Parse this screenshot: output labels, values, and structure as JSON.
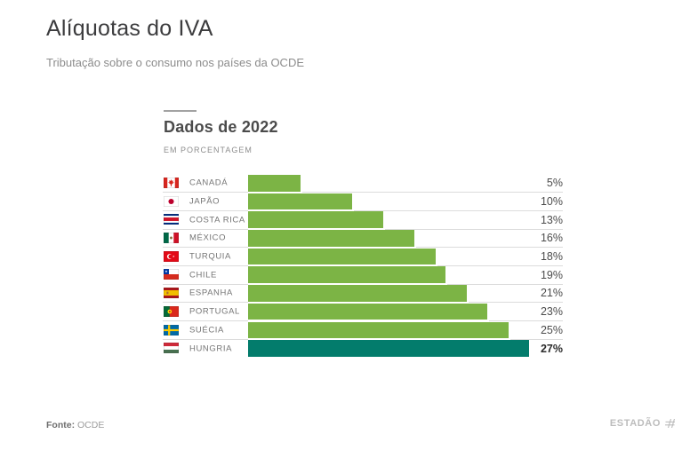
{
  "header": {
    "title": "Alíquotas do IVA",
    "subtitle": "Tributação sobre o consumo nos países da OCDE"
  },
  "chart_header": {
    "heading": "Dados de 2022",
    "unit_label": "EM PORCENTAGEM"
  },
  "chart_data": {
    "type": "bar",
    "orientation": "horizontal",
    "title": "Dados de 2022",
    "subtitle": "EM PORCENTAGEM",
    "unit": "%",
    "xlim": [
      0,
      30
    ],
    "grid": "row-separator-lines",
    "legend": "none",
    "bar_color": "#7cb445",
    "highlight_color": "#037c6c",
    "categories": [
      "CANADÁ",
      "JAPÃO",
      "COSTA RICA",
      "MÉXICO",
      "TURQUIA",
      "CHILE",
      "ESPANHA",
      "PORTUGAL",
      "SUÉCIA",
      "HUNGRIA"
    ],
    "values": [
      5,
      10,
      13,
      16,
      18,
      19,
      21,
      23,
      25,
      27
    ],
    "value_labels": [
      "5%",
      "10%",
      "13%",
      "16%",
      "18%",
      "19%",
      "21%",
      "23%",
      "25%",
      "27%"
    ],
    "flags": [
      "canada",
      "japan",
      "costa-rica",
      "mexico",
      "turkey",
      "chile",
      "spain",
      "portugal",
      "sweden",
      "hungary"
    ],
    "emphasis_index": 9
  },
  "footer": {
    "source_label": "Fonte:",
    "source_value": "OCDE",
    "brand": "ESTADÃO"
  }
}
